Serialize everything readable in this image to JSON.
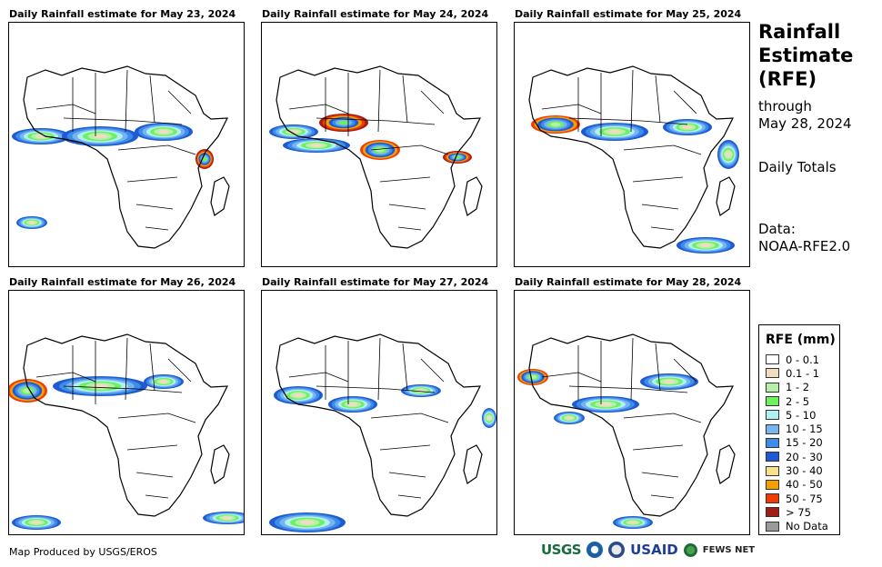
{
  "panels": [
    {
      "title": "Daily Rainfall estimate for May 23, 2024"
    },
    {
      "title": "Daily Rainfall estimate for May 24, 2024"
    },
    {
      "title": "Daily Rainfall estimate for May 25, 2024"
    },
    {
      "title": "Daily Rainfall estimate for May 26, 2024"
    },
    {
      "title": "Daily Rainfall estimate for May 27, 2024"
    },
    {
      "title": "Daily Rainfall estimate for May 28, 2024"
    }
  ],
  "sidebar": {
    "title": "Rainfall Estimate (RFE)",
    "through": "through",
    "date": "May 28, 2024",
    "totals": "Daily Totals",
    "data_label": "Data:",
    "data_source": "NOAA-RFE2.0"
  },
  "legend": {
    "title": "RFE (mm)",
    "items": [
      {
        "label": "0 - 0.1",
        "color": "#ffffff"
      },
      {
        "label": "0.1 - 1",
        "color": "#f0dcbf"
      },
      {
        "label": "1 - 2",
        "color": "#b4f0a8"
      },
      {
        "label": "2 - 5",
        "color": "#6cf25e"
      },
      {
        "label": "5 - 10",
        "color": "#b0f0f0"
      },
      {
        "label": "10 - 15",
        "color": "#78b4f0"
      },
      {
        "label": "15 - 20",
        "color": "#3c8ce8"
      },
      {
        "label": "20 - 30",
        "color": "#1e5ad2"
      },
      {
        "label": "30 - 40",
        "color": "#f8e08c"
      },
      {
        "label": "40 - 50",
        "color": "#f5a000"
      },
      {
        "label": "50 - 75",
        "color": "#f03c00"
      },
      {
        "label": "> 75",
        "color": "#a01e14"
      },
      {
        "label": "No Data",
        "color": "#9a9a9a"
      }
    ]
  },
  "footer": {
    "credit": "Map Produced by USGS/EROS",
    "logos": {
      "usgs": "USGS",
      "usaid": "USAID",
      "fews": "FEWS NET"
    }
  }
}
